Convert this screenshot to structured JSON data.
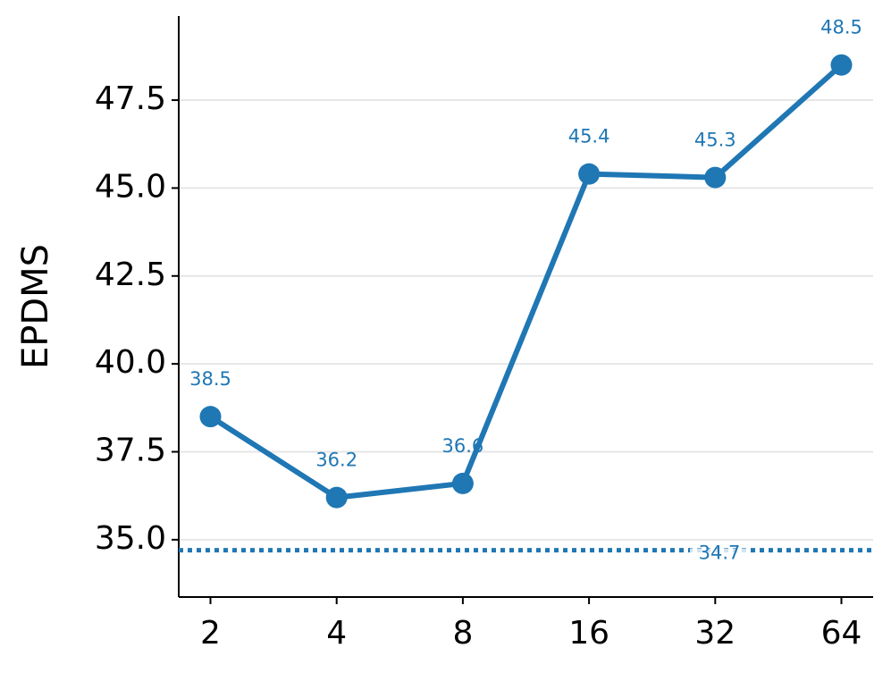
{
  "chart_data": {
    "type": "line",
    "y_label": "EPDMS",
    "categories": [
      "2",
      "4",
      "8",
      "16",
      "32",
      "64"
    ],
    "series": [
      {
        "name": "EPDMS",
        "color": "#1f77b4",
        "values": [
          38.5,
          36.2,
          36.6,
          45.4,
          45.3,
          48.5
        ]
      }
    ],
    "baseline": {
      "value": 34.7,
      "color": "#1f77b4",
      "style": "dotted"
    },
    "ylim": [
      33.37,
      49.89
    ],
    "yticks": [
      {
        "value": 35,
        "label": "35.0"
      },
      {
        "value": 37.5,
        "label": "37.5"
      },
      {
        "value": 40,
        "label": "40.0"
      },
      {
        "value": 42.5,
        "label": "42.5"
      },
      {
        "value": 45,
        "label": "45.0"
      },
      {
        "value": 47.5,
        "label": "47.5"
      }
    ],
    "grid": true
  }
}
